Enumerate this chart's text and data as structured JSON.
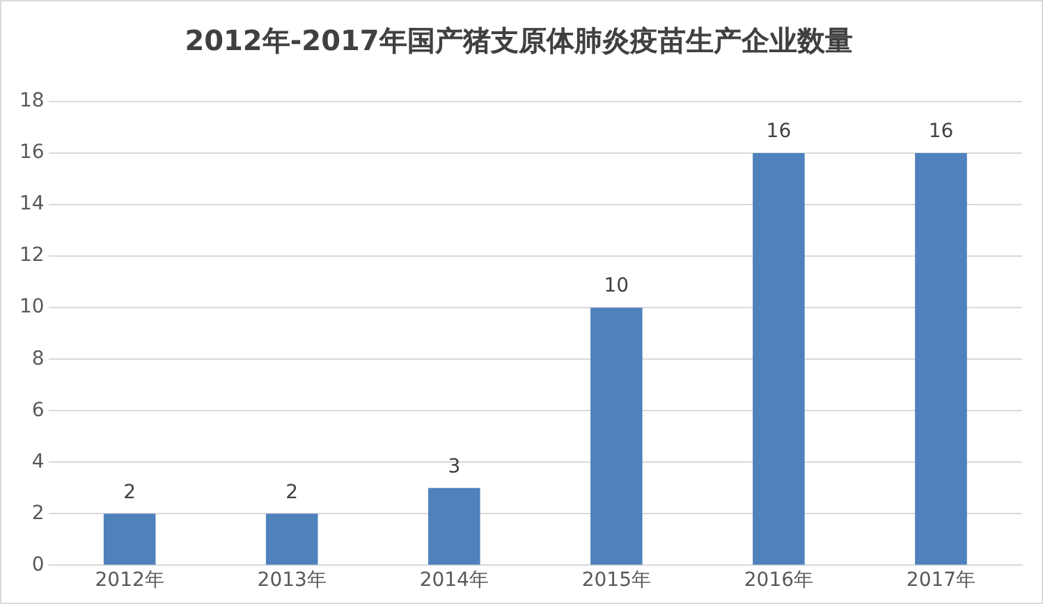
{
  "chart_data": {
    "type": "bar",
    "title": "2012年-2017年国产猪支原体肺炎疫苗生产企业数量",
    "categories": [
      "2012年",
      "2013年",
      "2014年",
      "2015年",
      "2016年",
      "2017年"
    ],
    "values": [
      2,
      2,
      3,
      10,
      16,
      16
    ],
    "color": "#4f81bd",
    "ylim": [
      0,
      18
    ],
    "yticks": [
      0,
      2,
      4,
      6,
      8,
      10,
      12,
      14,
      16,
      18
    ],
    "grid": "y",
    "data_labels": true
  }
}
